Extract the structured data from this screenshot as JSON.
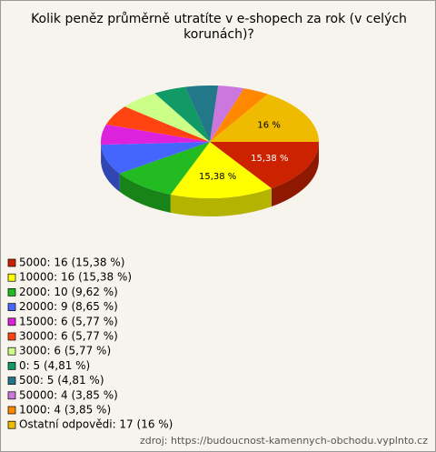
{
  "chart_data": {
    "type": "pie",
    "title": [
      "Kolik peněz průměrně utratíte v e-shopech za rok (v celých",
      "korunách)?"
    ],
    "categories": [
      "5000: 16 (15,38 %)",
      "10000: 16 (15,38 %)",
      "2000: 10 (9,62 %)",
      "20000: 9 (8,65 %)",
      "15000: 6 (5,77 %)",
      "30000: 6 (5,77 %)",
      "3000: 6 (5,77 %)",
      "0: 5 (4,81 %)",
      "500: 5 (4,81 %)",
      "50000: 4 (3,85 %)",
      "1000: 4 (3,85 %)",
      "Ostatní odpovědi: 17 (16 %)"
    ],
    "values": [
      15.38,
      15.38,
      9.62,
      8.65,
      5.77,
      5.77,
      5.77,
      4.81,
      4.81,
      3.85,
      3.85,
      16
    ],
    "value_labels": [
      "15,38 %",
      "15,38 %",
      null,
      null,
      null,
      null,
      null,
      null,
      null,
      null,
      null,
      "16 %"
    ],
    "colors": [
      "#cc2200",
      "#ffff00",
      "#22bb22",
      "#4466ff",
      "#dd22dd",
      "#ff4411",
      "#ccff88",
      "#119966",
      "#227788",
      "#cc77dd",
      "#ff8800",
      "#eebb00"
    ],
    "source": "zdroj: https://budoucnost-kamennych-obchodu.vyplnto.cz"
  }
}
